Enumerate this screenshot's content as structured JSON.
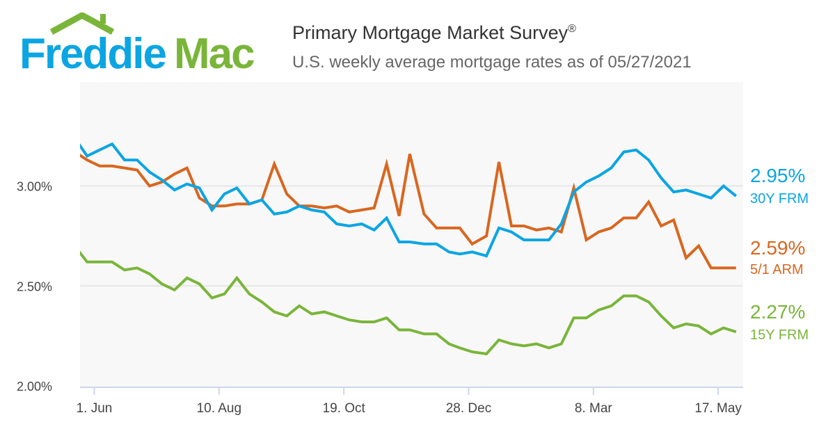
{
  "header": {
    "logo_text_1": "Freddie",
    "logo_text_2": "Mac",
    "title": "Primary Mortgage Market Survey",
    "title_mark": "®",
    "subtitle": "U.S. weekly average mortgage rates as of 05/27/2021"
  },
  "colors": {
    "frm30": "#0ba5e3",
    "arm51": "#d9661f",
    "frm15": "#7ab53a",
    "logo_blue": "#0ba5e3",
    "logo_green": "#7ab53a"
  },
  "chart_data": {
    "type": "line",
    "title": "Primary Mortgage Market Survey",
    "subtitle": "U.S. weekly average mortgage rates as of 05/27/2021",
    "xlabel": "",
    "ylabel": "",
    "ylim": [
      2.0,
      3.52
    ],
    "xlim": [
      "2020-05-24",
      "2021-05-31"
    ],
    "grid": "horizontal",
    "yticks": [
      {
        "value": 2.0,
        "label": "2.00%"
      },
      {
        "value": 2.5,
        "label": "2.50%"
      },
      {
        "value": 3.0,
        "label": "3.00%"
      }
    ],
    "xticks": [
      {
        "date": "2020-06-01",
        "label": "1. Jun"
      },
      {
        "date": "2020-08-10",
        "label": "10. Aug"
      },
      {
        "date": "2020-10-19",
        "label": "19. Oct"
      },
      {
        "date": "2020-12-28",
        "label": "28. Dec"
      },
      {
        "date": "2021-03-08",
        "label": "8. Mar"
      },
      {
        "date": "2021-05-17",
        "label": "17. May"
      }
    ],
    "x": [
      "2020-05-21",
      "2020-05-28",
      "2020-06-04",
      "2020-06-11",
      "2020-06-18",
      "2020-06-25",
      "2020-07-02",
      "2020-07-09",
      "2020-07-16",
      "2020-07-23",
      "2020-07-30",
      "2020-08-06",
      "2020-08-13",
      "2020-08-20",
      "2020-08-27",
      "2020-09-03",
      "2020-09-10",
      "2020-09-17",
      "2020-09-24",
      "2020-10-01",
      "2020-10-08",
      "2020-10-15",
      "2020-10-22",
      "2020-10-29",
      "2020-11-05",
      "2020-11-12",
      "2020-11-19",
      "2020-11-25",
      "2020-12-03",
      "2020-12-10",
      "2020-12-17",
      "2020-12-23",
      "2020-12-30",
      "2021-01-07",
      "2021-01-14",
      "2021-01-21",
      "2021-01-28",
      "2021-02-04",
      "2021-02-11",
      "2021-02-18",
      "2021-02-25",
      "2021-03-04",
      "2021-03-11",
      "2021-03-18",
      "2021-03-25",
      "2021-04-01",
      "2021-04-08",
      "2021-04-15",
      "2021-04-22",
      "2021-04-29",
      "2021-05-06",
      "2021-05-13",
      "2021-05-20",
      "2021-05-27"
    ],
    "series": [
      {
        "name": "30Y FRM",
        "latest": "2.95%",
        "color": "#0ba5e3",
        "values": [
          3.24,
          3.15,
          3.18,
          3.21,
          3.13,
          3.13,
          3.07,
          3.03,
          2.98,
          3.01,
          2.99,
          2.88,
          2.96,
          2.99,
          2.91,
          2.93,
          2.86,
          2.87,
          2.9,
          2.88,
          2.87,
          2.81,
          2.8,
          2.81,
          2.78,
          2.84,
          2.72,
          2.72,
          2.71,
          2.71,
          2.67,
          2.66,
          2.67,
          2.65,
          2.79,
          2.77,
          2.73,
          2.73,
          2.73,
          2.81,
          2.97,
          3.02,
          3.05,
          3.09,
          3.17,
          3.18,
          3.13,
          3.04,
          2.97,
          2.98,
          2.96,
          2.94,
          3.0,
          2.95
        ]
      },
      {
        "name": "5/1 ARM",
        "latest": "2.59%",
        "color": "#d9661f",
        "values": [
          3.17,
          3.13,
          3.1,
          3.1,
          3.09,
          3.08,
          3.0,
          3.02,
          3.06,
          3.09,
          2.94,
          2.9,
          2.9,
          2.91,
          2.91,
          2.93,
          3.11,
          2.96,
          2.9,
          2.9,
          2.89,
          2.9,
          2.87,
          2.88,
          2.89,
          3.11,
          2.85,
          3.16,
          2.86,
          2.79,
          2.79,
          2.79,
          2.71,
          2.75,
          3.12,
          2.8,
          2.8,
          2.78,
          2.79,
          2.77,
          2.99,
          2.73,
          2.77,
          2.79,
          2.84,
          2.84,
          2.92,
          2.8,
          2.83,
          2.64,
          2.7,
          2.59,
          2.59,
          2.59
        ]
      },
      {
        "name": "15Y FRM",
        "latest": "2.27%",
        "color": "#7ab53a",
        "values": [
          2.7,
          2.62,
          2.62,
          2.62,
          2.58,
          2.59,
          2.56,
          2.51,
          2.48,
          2.54,
          2.51,
          2.44,
          2.46,
          2.54,
          2.46,
          2.42,
          2.37,
          2.35,
          2.4,
          2.36,
          2.37,
          2.35,
          2.33,
          2.32,
          2.32,
          2.34,
          2.28,
          2.28,
          2.26,
          2.26,
          2.21,
          2.19,
          2.17,
          2.16,
          2.23,
          2.21,
          2.2,
          2.21,
          2.19,
          2.21,
          2.34,
          2.34,
          2.38,
          2.4,
          2.45,
          2.45,
          2.42,
          2.35,
          2.29,
          2.31,
          2.3,
          2.26,
          2.29,
          2.27
        ]
      }
    ]
  }
}
